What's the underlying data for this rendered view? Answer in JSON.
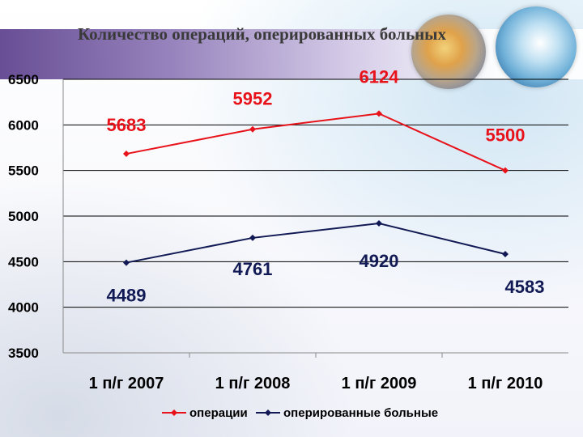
{
  "chart_data": {
    "type": "line",
    "title": "Количество операций, оперированных больных",
    "categories": [
      "1 п/г 2007",
      "1 п/г 2008",
      "1 п/г 2009",
      "1 п/г 2010"
    ],
    "series": [
      {
        "name": "операции",
        "values": [
          5683,
          5952,
          6124,
          5500
        ],
        "color": "#e8131a"
      },
      {
        "name": "оперированные больные",
        "values": [
          4489,
          4761,
          4920,
          4583
        ],
        "color": "#121a55"
      }
    ],
    "ylim": [
      3500,
      6500
    ],
    "yticks": [
      3500,
      4000,
      4500,
      5000,
      5500,
      6000,
      6500
    ],
    "grid": true,
    "legend": "bottom"
  }
}
